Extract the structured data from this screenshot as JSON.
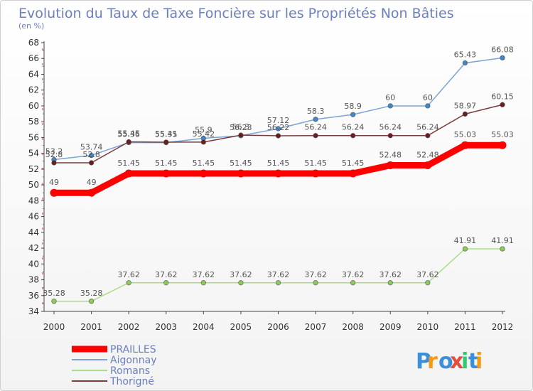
{
  "chart_data": {
    "type": "line",
    "title": "Evolution du Taux de Taxe Foncière sur les Propriétés Non Bâties",
    "subtitle": "(en %)",
    "xlabel": "",
    "ylabel": "",
    "x": [
      "2000",
      "2001",
      "2002",
      "2003",
      "2004",
      "2005",
      "2006",
      "2007",
      "2008",
      "2009",
      "2010",
      "2011",
      "2012"
    ],
    "ylim": [
      34,
      68
    ],
    "yticks": [
      34,
      36,
      38,
      40,
      42,
      44,
      46,
      48,
      50,
      52,
      54,
      56,
      58,
      60,
      62,
      64,
      66,
      68
    ],
    "grid": false,
    "legend_position": "bottom-left",
    "series": [
      {
        "name": "Aigonnay",
        "color": "#7ba3d6",
        "marker": "#3f87c9",
        "values": [
          53.2,
          53.74,
          55.36,
          55.35,
          55.9,
          56.23,
          57.12,
          58.3,
          58.9,
          60,
          60,
          65.43,
          66.08
        ],
        "labels": [
          "53.2",
          "53.74",
          "55.36",
          "55.35",
          "55.9",
          "56.23",
          "57.12",
          "58.3",
          "58.9",
          "60",
          "60",
          "65.43",
          "66.08"
        ]
      },
      {
        "name": "Thorigné",
        "color": "#7a3c3c",
        "marker": "#6a1e1e",
        "values": [
          52.8,
          52.8,
          55.45,
          55.41,
          55.42,
          56.3,
          56.22,
          56.24,
          56.24,
          56.24,
          56.24,
          58.97,
          60.15
        ],
        "labels": [
          "52.8",
          "52.8",
          "55.45",
          "55.41",
          "55.42",
          "56.3",
          "56.22",
          "56.24",
          "56.24",
          "56.24",
          "56.24",
          "58.97",
          "60.15"
        ]
      },
      {
        "name": "Romans",
        "color": "#a9dd85",
        "marker": "#8bcc55",
        "values": [
          35.28,
          35.28,
          37.62,
          37.62,
          37.62,
          37.62,
          37.62,
          37.62,
          37.62,
          37.62,
          37.62,
          41.91,
          41.91
        ],
        "labels": [
          "35.28",
          "35.28",
          "37.62",
          "37.62",
          "37.62",
          "37.62",
          "37.62",
          "37.62",
          "37.62",
          "37.62",
          "37.62",
          "41.91",
          "41.91"
        ]
      },
      {
        "name": "PRAILLES",
        "color": "#ff0000",
        "marker": "#ff0000",
        "values": [
          49,
          49,
          51.45,
          51.45,
          51.45,
          51.45,
          51.45,
          51.45,
          51.45,
          52.48,
          52.48,
          55.03,
          55.03
        ],
        "labels": [
          "49",
          "49",
          "51.45",
          "51.45",
          "51.45",
          "51.45",
          "51.45",
          "51.45",
          "51.45",
          "52.48",
          "52.48",
          "55.03",
          "55.03"
        ]
      }
    ],
    "legend": [
      "PRAILLES",
      "Aigonnay",
      "Romans",
      "Thorigné"
    ]
  },
  "logo": {
    "letters": [
      "P",
      "r",
      "o",
      "x",
      "i",
      "t",
      "i"
    ],
    "colors": [
      "#3a8fd8",
      "#f39c12",
      "#3a8fd8",
      "#e74c3c",
      "#2ecc71",
      "#3a8fd8",
      "#f39c12"
    ]
  }
}
